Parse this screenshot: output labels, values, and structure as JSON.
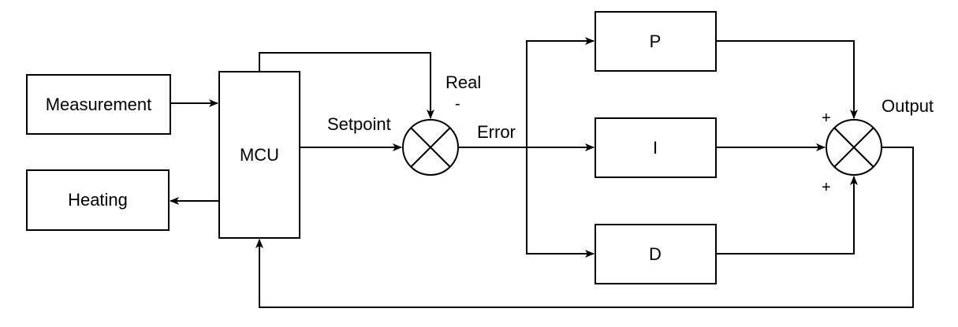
{
  "blocks": {
    "measurement": "Measurement",
    "heating": "Heating",
    "mcu": "MCU",
    "p": "P",
    "i": "I",
    "d": "D"
  },
  "signals": {
    "setpoint": "Setpoint",
    "real": "Real",
    "error": "Error",
    "output": "Output"
  },
  "signs": {
    "real_sign": "-",
    "p_sign": "+",
    "d_sign": "+"
  },
  "colors": {
    "stroke": "#000000",
    "fill": "#ffffff"
  }
}
